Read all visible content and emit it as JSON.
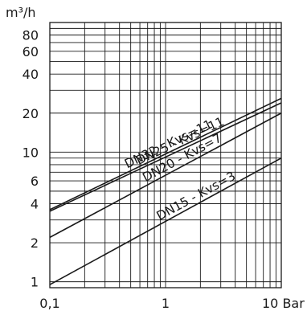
{
  "chart_data": {
    "type": "line",
    "x_scale": "log",
    "y_scale": "log",
    "xlim": [
      0.1,
      10
    ],
    "ylim": [
      0.9,
      100
    ],
    "y_unit_label": "m³/h",
    "x_unit_label": "Bar",
    "grid": true,
    "x_tick_labels": [
      {
        "value": 0.1,
        "label": "0,1"
      },
      {
        "value": 1,
        "label": "1"
      },
      {
        "value": 10,
        "label": "10 Bar"
      }
    ],
    "y_tick_labels": [
      {
        "value": 1,
        "label": "1"
      },
      {
        "value": 2,
        "label": "2"
      },
      {
        "value": 4,
        "label": "4"
      },
      {
        "value": 6,
        "label": "6"
      },
      {
        "value": 10,
        "label": "10"
      },
      {
        "value": 20,
        "label": "20"
      },
      {
        "value": 40,
        "label": "40"
      },
      {
        "value": 60,
        "label": "60"
      },
      {
        "value": 80,
        "label": "80"
      }
    ],
    "series": [
      {
        "name": "DN32 - Kvs=11",
        "x": [
          0.1,
          10
        ],
        "y": [
          3.6,
          26
        ]
      },
      {
        "name": "DN25 - Kvs=11",
        "x": [
          0.1,
          10
        ],
        "y": [
          3.5,
          24
        ]
      },
      {
        "name": "DN20 - Kvs=7",
        "x": [
          0.1,
          10
        ],
        "y": [
          2.2,
          20
        ]
      },
      {
        "name": "DN15 - Kvs=3",
        "x": [
          0.1,
          10
        ],
        "y": [
          0.95,
          9
        ]
      }
    ]
  }
}
